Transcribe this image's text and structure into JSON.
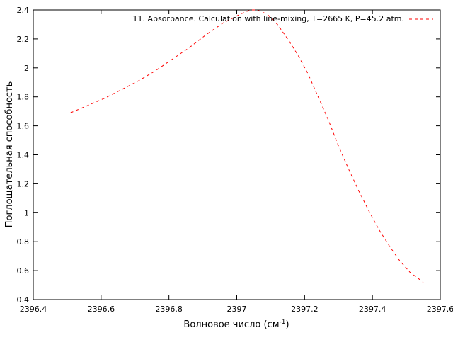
{
  "chart_data": {
    "type": "line",
    "title": "",
    "xlabel_main": "Волновое число (см",
    "xlabel_sup": "-1",
    "xlabel_close": ")",
    "ylabel": "Поглощательная способность",
    "xlim": [
      2396.4,
      2397.6
    ],
    "ylim": [
      0.4,
      2.4
    ],
    "x_ticks": [
      "2396.4",
      "2396.6",
      "2396.8",
      "2397",
      "2397.2",
      "2397.4",
      "2397.6"
    ],
    "y_ticks": [
      "0.4",
      "0.6",
      "0.8",
      "1",
      "1.2",
      "1.4",
      "1.6",
      "1.8",
      "2",
      "2.2",
      "2.4"
    ],
    "grid": false,
    "legend_position": "top-right",
    "series": [
      {
        "name": "11. Absorbance. Calculation with line-mixing, T=2665 K, P=45.2 atm.",
        "color": "#ff0000",
        "dash": "dashed",
        "x": [
          2396.51,
          2396.56,
          2396.61,
          2396.66,
          2396.71,
          2396.76,
          2396.81,
          2396.86,
          2396.91,
          2396.96,
          2397.01,
          2397.04,
          2397.06,
          2397.09,
          2397.12,
          2397.15,
          2397.18,
          2397.21,
          2397.24,
          2397.27,
          2397.3,
          2397.33,
          2397.36,
          2397.39,
          2397.42,
          2397.45,
          2397.48,
          2397.51,
          2397.55
        ],
        "y": [
          1.69,
          1.74,
          1.79,
          1.85,
          1.91,
          1.98,
          2.06,
          2.14,
          2.23,
          2.31,
          2.37,
          2.4,
          2.4,
          2.37,
          2.3,
          2.2,
          2.09,
          1.96,
          1.8,
          1.64,
          1.46,
          1.3,
          1.15,
          1.01,
          0.88,
          0.77,
          0.67,
          0.59,
          0.52
        ]
      }
    ]
  }
}
